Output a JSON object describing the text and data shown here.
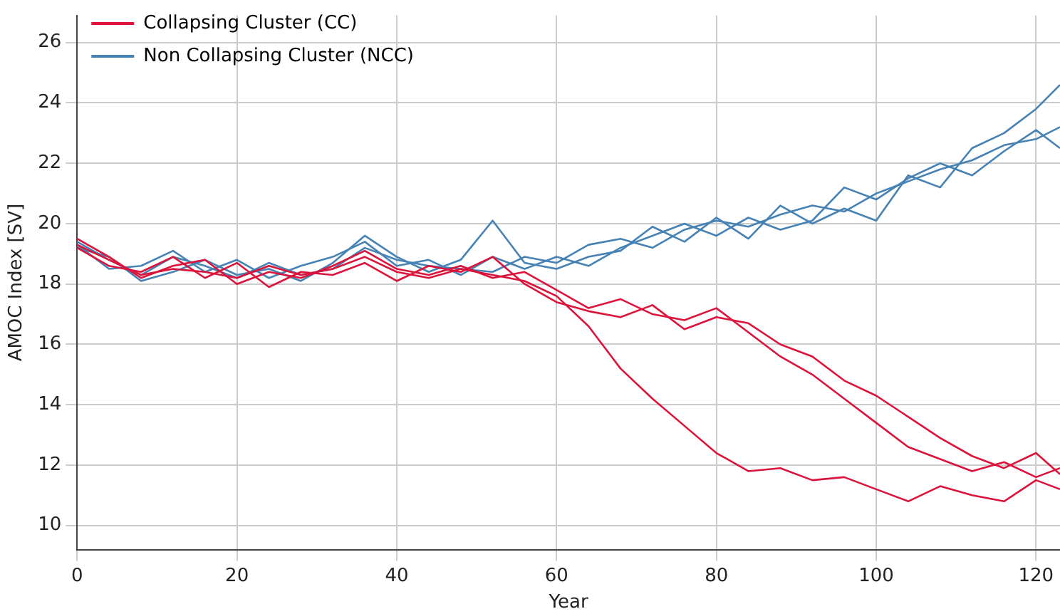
{
  "chart_data": {
    "type": "line",
    "xlabel": "Year",
    "ylabel": "AMOC Index [SV]",
    "x": [
      0,
      4,
      8,
      12,
      16,
      20,
      24,
      28,
      32,
      36,
      40,
      44,
      48,
      52,
      56,
      60,
      64,
      68,
      72,
      76,
      80,
      84,
      88,
      92,
      96,
      100,
      104,
      108,
      112,
      116,
      120,
      123
    ],
    "xlim": [
      0,
      123
    ],
    "xticks": [
      0,
      20,
      40,
      60,
      80,
      100,
      120
    ],
    "ylim": [
      9.2,
      26.9
    ],
    "yticks": [
      10,
      12,
      14,
      16,
      18,
      20,
      22,
      24,
      26
    ],
    "grid": true,
    "legend": "top left",
    "marker": "none",
    "line_style": "solid",
    "series": [
      {
        "name": "Collapsing Cluster (CC)",
        "color": "#dc143c",
        "values": [
          19.3,
          18.8,
          18.3,
          18.5,
          18.4,
          18.2,
          18.6,
          18.3,
          18.5,
          18.9,
          18.4,
          18.2,
          18.5,
          18.3,
          18.1,
          17.6,
          16.6,
          15.2,
          14.2,
          13.3,
          12.4,
          11.8,
          11.9,
          11.5,
          11.6,
          11.2,
          10.8,
          11.3,
          11.0,
          10.8,
          11.5,
          11.2
        ]
      },
      {
        "color": "#dc143c",
        "values": [
          19.5,
          18.9,
          18.2,
          18.6,
          18.8,
          18.0,
          18.4,
          18.2,
          18.6,
          19.1,
          18.5,
          18.3,
          18.6,
          18.2,
          18.4,
          17.8,
          17.2,
          17.5,
          17.0,
          16.8,
          17.2,
          16.4,
          15.6,
          15.0,
          14.2,
          13.4,
          12.6,
          12.2,
          11.8,
          12.1,
          11.6,
          11.9
        ]
      },
      {
        "color": "#dc143c",
        "values": [
          19.2,
          18.6,
          18.4,
          18.9,
          18.2,
          18.7,
          17.9,
          18.4,
          18.3,
          18.7,
          18.1,
          18.6,
          18.4,
          18.9,
          18.0,
          17.4,
          17.1,
          16.9,
          17.3,
          16.5,
          16.9,
          16.7,
          16.0,
          15.6,
          14.8,
          14.3,
          13.6,
          12.9,
          12.3,
          11.9,
          12.4,
          11.7
        ]
      },
      {
        "name": "Non Collapsing Cluster (NCC)",
        "color": "#4682b4",
        "values": [
          19.4,
          18.8,
          18.3,
          18.9,
          18.6,
          18.2,
          18.7,
          18.3,
          18.5,
          19.2,
          18.8,
          18.6,
          18.5,
          18.4,
          18.9,
          18.7,
          19.3,
          19.5,
          19.2,
          19.8,
          20.1,
          19.9,
          20.3,
          20.6,
          20.4,
          21.0,
          21.4,
          21.8,
          22.1,
          22.6,
          22.8,
          23.2
        ]
      },
      {
        "color": "#4682b4",
        "values": [
          19.3,
          18.5,
          18.6,
          19.1,
          18.4,
          18.8,
          18.2,
          18.6,
          18.9,
          19.4,
          18.6,
          18.8,
          18.3,
          18.9,
          18.5,
          18.9,
          18.6,
          19.2,
          19.6,
          20.0,
          19.6,
          20.2,
          19.8,
          20.1,
          21.2,
          20.8,
          21.5,
          22.0,
          21.6,
          22.4,
          23.1,
          22.5
        ]
      },
      {
        "color": "#4682b4",
        "values": [
          19.2,
          18.9,
          18.1,
          18.4,
          18.8,
          18.3,
          18.5,
          18.1,
          18.7,
          19.6,
          18.9,
          18.4,
          18.8,
          20.1,
          18.7,
          18.5,
          18.9,
          19.1,
          19.9,
          19.4,
          20.2,
          19.5,
          20.6,
          20.0,
          20.5,
          20.1,
          21.6,
          21.2,
          22.5,
          23.0,
          23.8,
          24.6
        ]
      }
    ]
  }
}
